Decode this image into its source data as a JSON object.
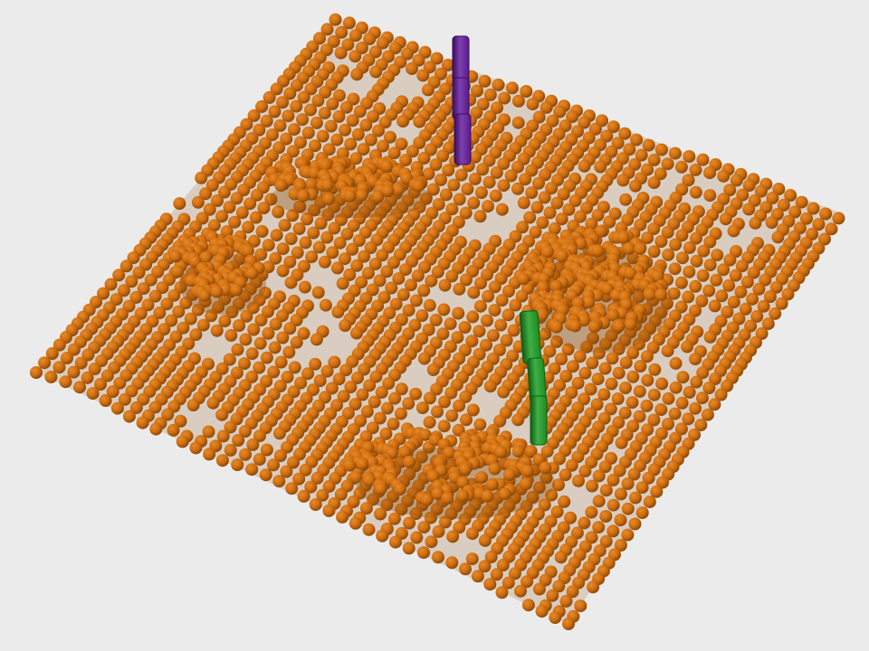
{
  "scene": {
    "background_color": "#ebebeb",
    "bead_color": "#d06e0f",
    "bead_highlight": "#e58a2c",
    "bead_shadow": "#8a4708",
    "clusters": [
      {
        "name": "left-mound"
      },
      {
        "name": "center-right-mound"
      },
      {
        "name": "top-ridge"
      },
      {
        "name": "bottom-ridge"
      }
    ],
    "rods": [
      {
        "name": "purple-rod",
        "color": "#5a1a8a",
        "highlight": "#7d3fb0",
        "shadow": "#3a0e5c"
      },
      {
        "name": "green-rod",
        "color": "#1f8a24",
        "highlight": "#3fb044",
        "shadow": "#0f5c13"
      }
    ]
  }
}
